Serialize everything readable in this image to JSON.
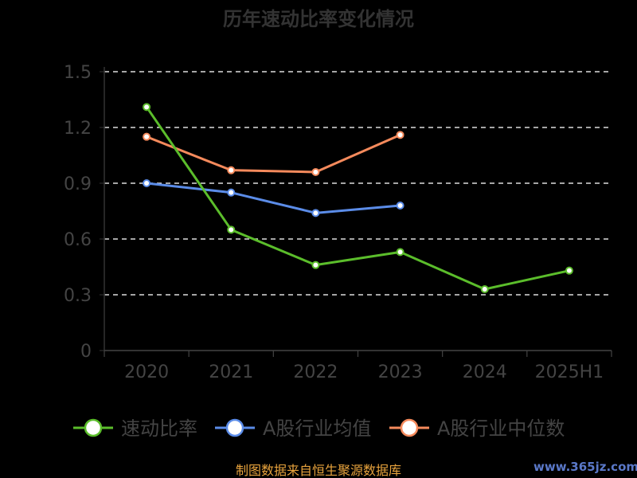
{
  "chart_data": {
    "type": "line",
    "title": "历年速动比率变化情况",
    "categories": [
      "2020",
      "2021",
      "2022",
      "2023",
      "2024",
      "2025H1"
    ],
    "y_ticks": [
      "0",
      "0.3",
      "0.6",
      "0.9",
      "1.2",
      "1.5"
    ],
    "ylim": [
      0,
      1.5
    ],
    "grid": true,
    "legend_position": "bottom",
    "series": [
      {
        "name": "速动比率",
        "color": "#5bbd2b",
        "values": [
          1.31,
          0.65,
          0.46,
          0.53,
          0.33,
          0.43
        ]
      },
      {
        "name": "A股行业均值",
        "color": "#5b8ce8",
        "values": [
          0.9,
          0.85,
          0.74,
          0.78,
          null,
          null
        ]
      },
      {
        "name": "A股行业中位数",
        "color": "#f58a5c",
        "values": [
          1.15,
          0.97,
          0.96,
          1.16,
          null,
          null
        ]
      }
    ]
  },
  "source": "制图数据来自恒生聚源数据库",
  "watermark": "www.365jz.com"
}
